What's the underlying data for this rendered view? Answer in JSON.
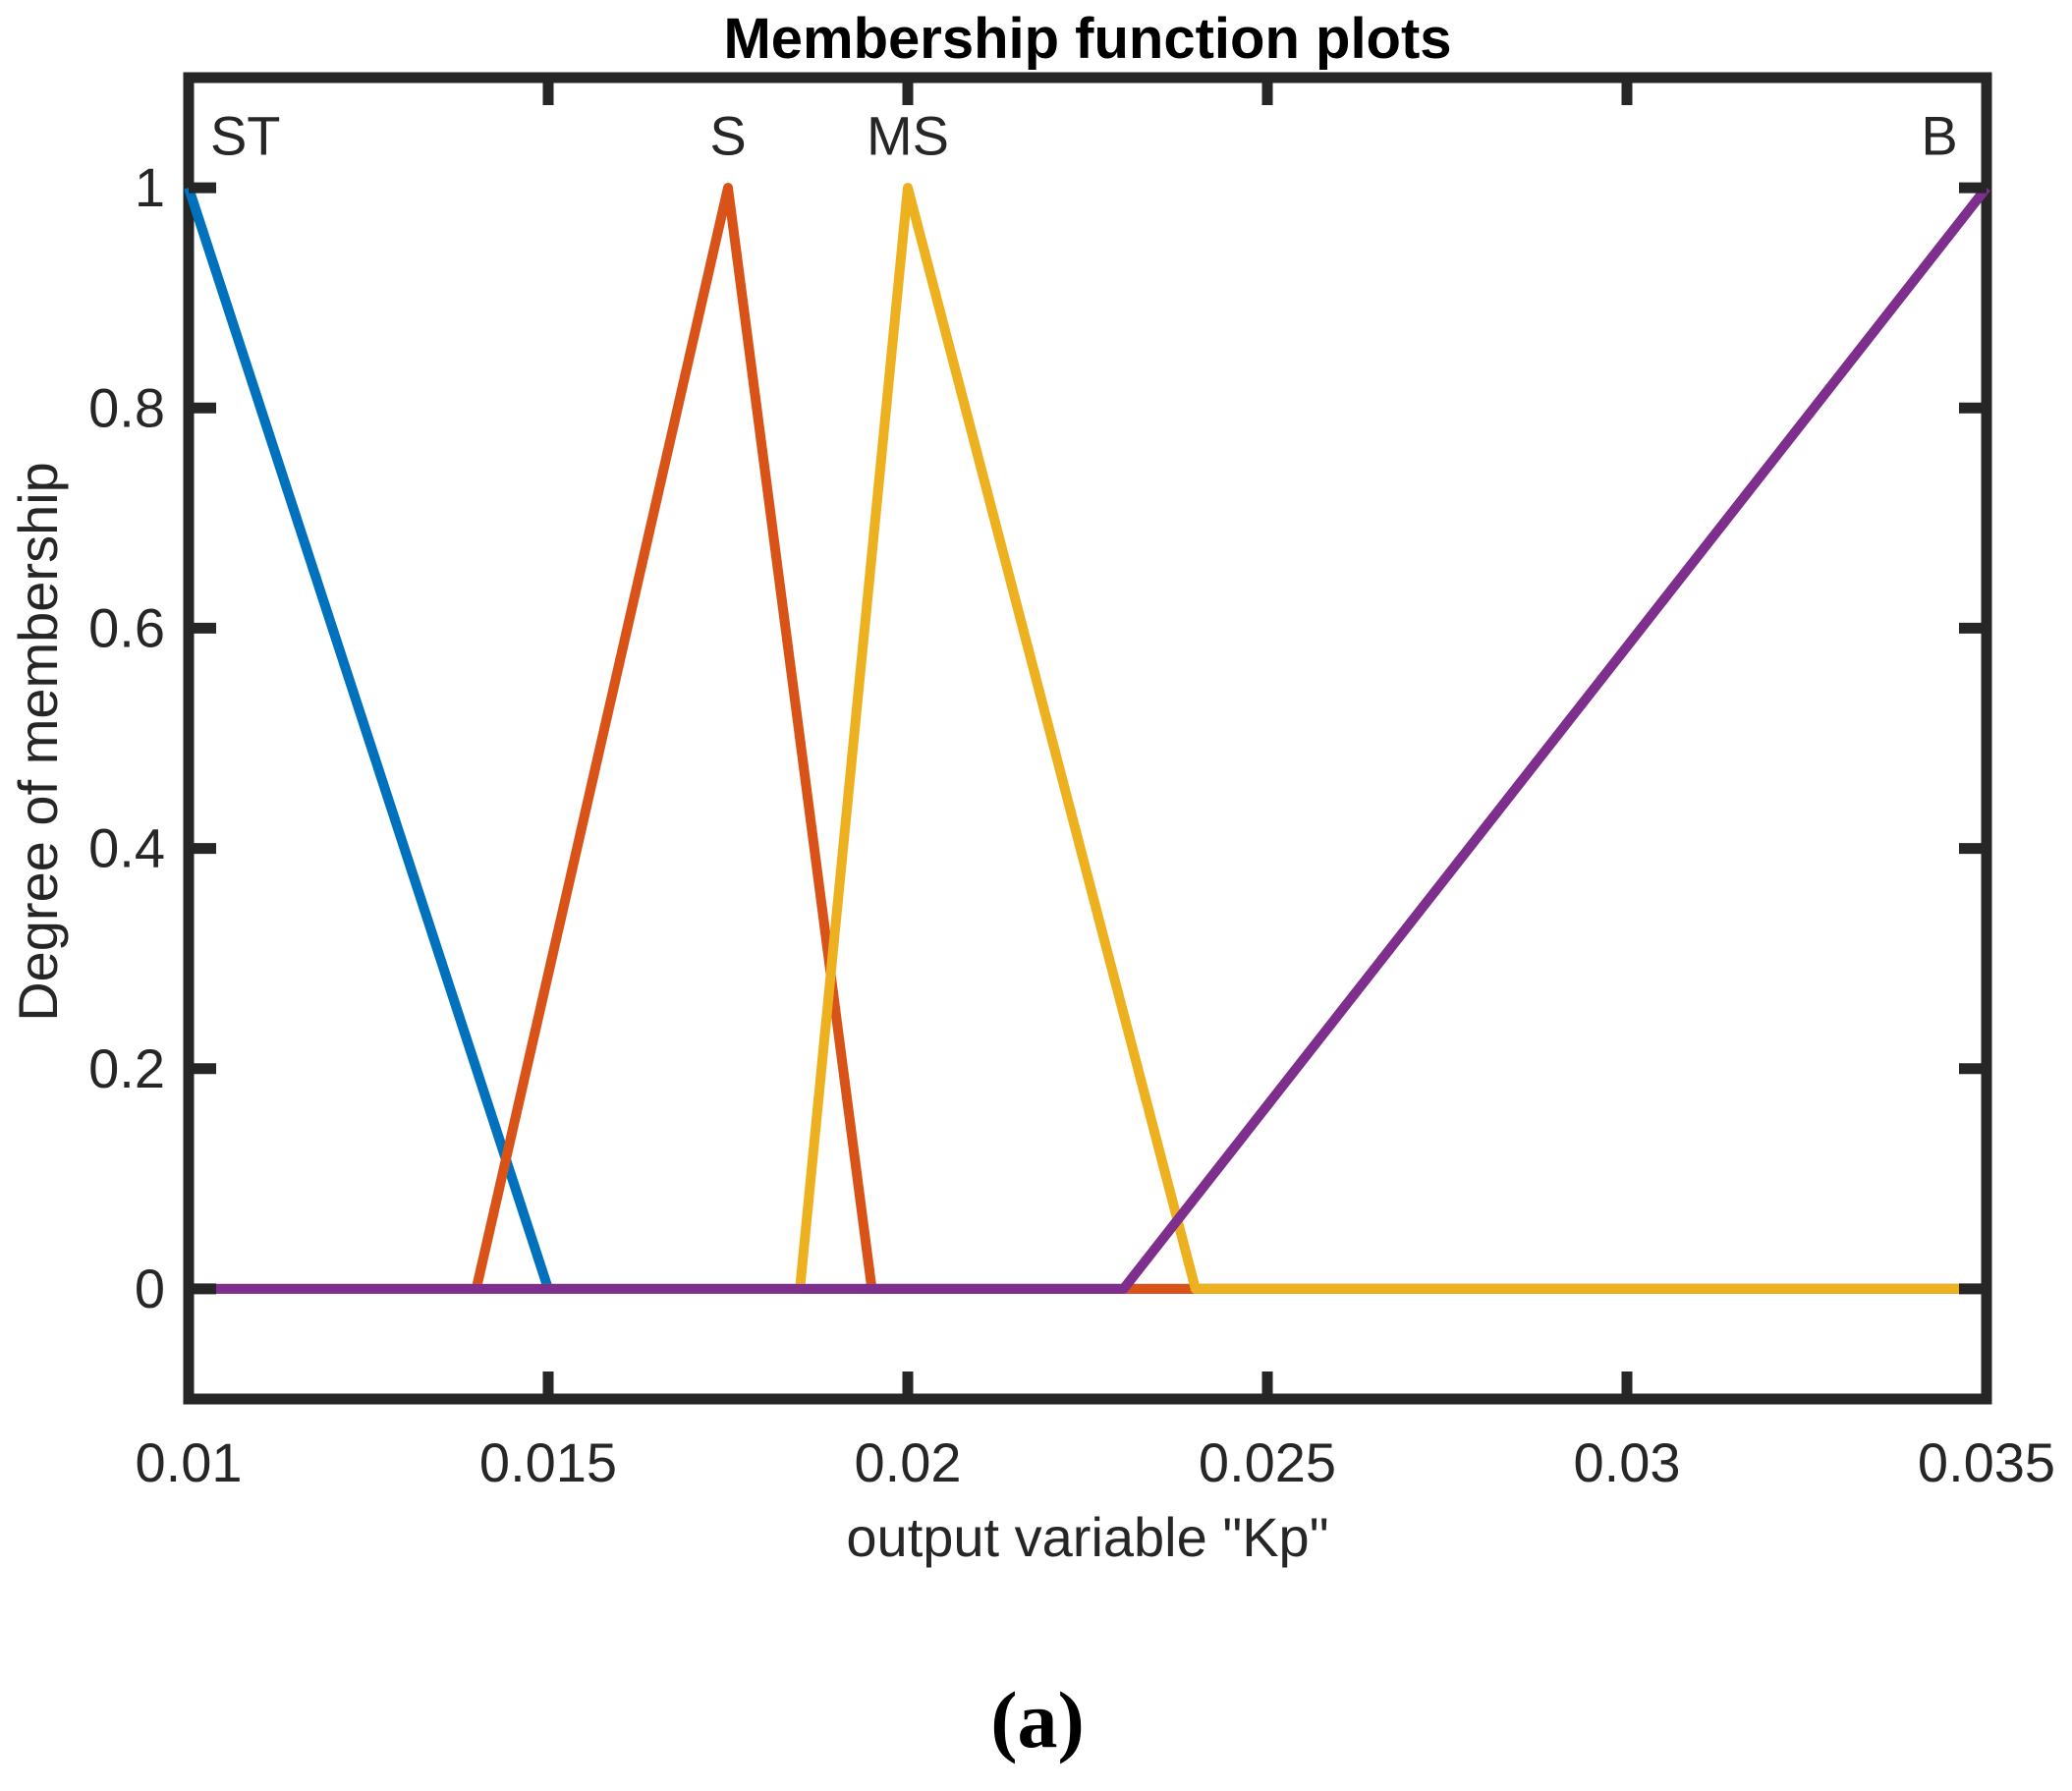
{
  "figure": {
    "caption": "(a)"
  },
  "chart_data": {
    "type": "line",
    "title": "Membership function plots",
    "xlabel": "output variable \"Kp\"",
    "ylabel": "Degree of membership",
    "xlim": [
      0.01,
      0.035
    ],
    "ylim": [
      -0.1,
      1.1
    ],
    "grid": false,
    "legend": "none",
    "x_ticks": [
      0.01,
      0.015,
      0.02,
      0.025,
      0.03,
      0.035
    ],
    "x_tick_labels": [
      "0.01",
      "0.015",
      "0.02",
      "0.025",
      "0.03",
      "0.035"
    ],
    "y_ticks": [
      0,
      0.2,
      0.4,
      0.6,
      0.8,
      1
    ],
    "y_tick_labels": [
      "0",
      "0.2",
      "0.4",
      "0.6",
      "0.8",
      "1"
    ],
    "axis_color": "#262626",
    "text_color": "#262626",
    "line_width": 10,
    "series": [
      {
        "name": "ST",
        "color": "#0072BD",
        "points": [
          [
            0.01,
            1
          ],
          [
            0.015,
            0
          ],
          [
            0.035,
            0
          ]
        ]
      },
      {
        "name": "S",
        "color": "#D95319",
        "points": [
          [
            0.01,
            0
          ],
          [
            0.014,
            0
          ],
          [
            0.0175,
            1
          ],
          [
            0.0195,
            0
          ],
          [
            0.035,
            0
          ]
        ]
      },
      {
        "name": "MS",
        "color": "#EDB120",
        "points": [
          [
            0.01,
            0
          ],
          [
            0.0185,
            0
          ],
          [
            0.02,
            1
          ],
          [
            0.024,
            0
          ],
          [
            0.035,
            0
          ]
        ]
      },
      {
        "name": "B",
        "color": "#7E2F8E",
        "points": [
          [
            0.01,
            0
          ],
          [
            0.023,
            0
          ],
          [
            0.035,
            1
          ]
        ]
      }
    ],
    "annotations": [
      {
        "text": "ST",
        "x": 0.0103,
        "y": 1.03,
        "anchor": "start"
      },
      {
        "text": "S",
        "x": 0.0175,
        "y": 1.03,
        "anchor": "middle"
      },
      {
        "text": "MS",
        "x": 0.02,
        "y": 1.03,
        "anchor": "middle"
      },
      {
        "text": "B",
        "x": 0.0346,
        "y": 1.03,
        "anchor": "end"
      }
    ]
  }
}
